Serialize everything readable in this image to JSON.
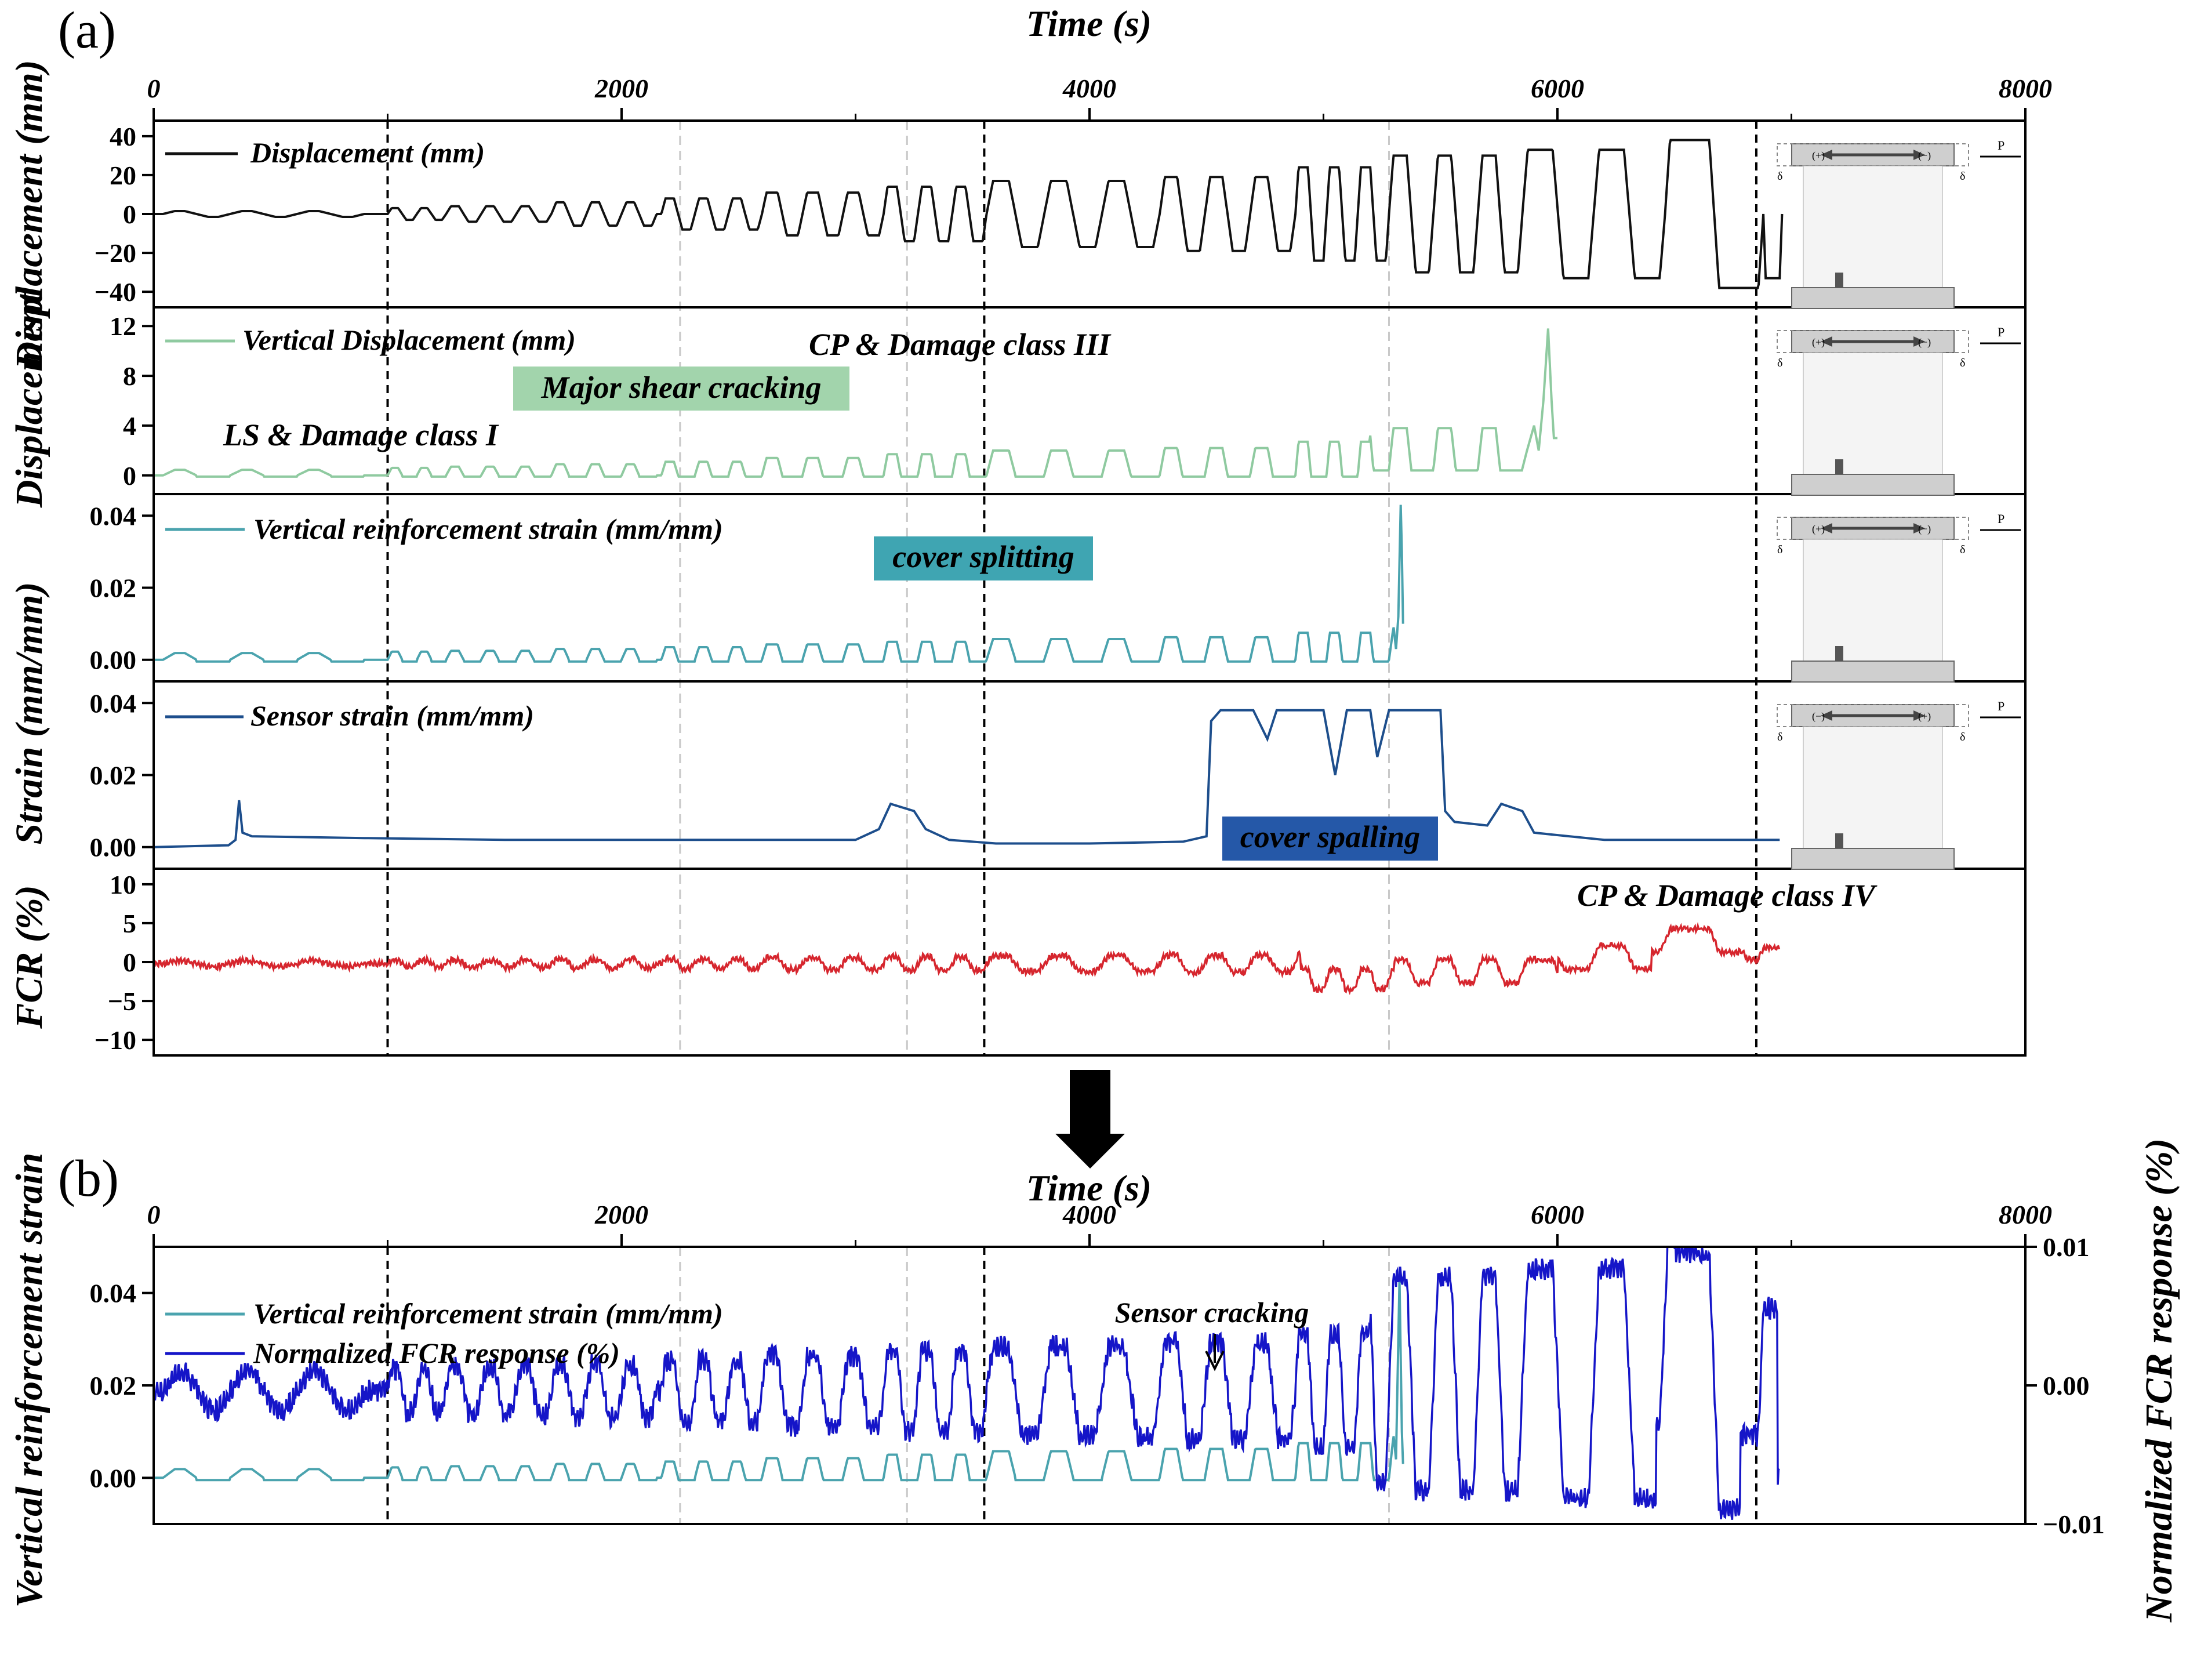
{
  "figure": {
    "panel_a_label": "(a)",
    "panel_b_label": "(b)",
    "time_axis_label": "Time (s)"
  },
  "colors": {
    "displacement": "#111111",
    "vertical_displacement": "#8fcaa0",
    "vertical_reinforcement_strain": "#4aa3ae",
    "sensor_strain": "#1d4e8c",
    "fcr": "#d6262e",
    "normalized_fcr": "#1515c8",
    "major_shear_box": "#a2d4ac",
    "cover_splitting_box": "#3fa5b2",
    "cover_spalling_box": "#2558a8"
  },
  "annotations": {
    "cp_damage_iii": "CP & Damage class III",
    "major_shear_cracking": "Major shear cracking",
    "ls_damage_i": "LS & Damage class I",
    "cover_splitting": "cover splitting",
    "cover_spalling": "cover spalling",
    "cp_damage_iv": "CP & Damage class IV",
    "sensor_cracking": "Sensor cracking"
  },
  "schematic": {
    "load_label": "P",
    "delta_label": "δ",
    "plus_sign": "(+)",
    "minus_sign": "(−)"
  },
  "chart_data": [
    {
      "type": "line",
      "panel": "a-1",
      "ylabel": "Displacement (mm)",
      "xlim": [
        0,
        8000
      ],
      "ylim": [
        -48,
        48
      ],
      "yticks": [
        40,
        20,
        0,
        -20,
        -40
      ],
      "ytick_labels": [
        "40",
        "20",
        "0",
        "−20",
        "−40"
      ],
      "xticks": [
        0,
        2000,
        4000,
        6000,
        8000
      ],
      "legend": "Displacement (mm)",
      "vlines_dark": [
        1000,
        3550,
        6850
      ],
      "vlines_light": [
        2250,
        3220,
        5280
      ],
      "cycle_blocks": [
        {
          "t0": 40,
          "t1": 900,
          "amp": 1.5,
          "n": 3,
          "hold": 0.3
        },
        {
          "t0": 1000,
          "t1": 1250,
          "amp": 3,
          "n": 2,
          "hold": 0.45
        },
        {
          "t0": 1250,
          "t1": 1700,
          "amp": 4,
          "n": 3,
          "hold": 0.45
        },
        {
          "t0": 1700,
          "t1": 2150,
          "amp": 6,
          "n": 3,
          "hold": 0.45
        },
        {
          "t0": 2170,
          "t1": 2600,
          "amp": 8,
          "n": 3,
          "hold": 0.5
        },
        {
          "t0": 2600,
          "t1": 3120,
          "amp": 11,
          "n": 3,
          "hold": 0.55
        },
        {
          "t0": 3120,
          "t1": 3560,
          "amp": 14,
          "n": 3,
          "hold": 0.55
        },
        {
          "t0": 3560,
          "t1": 4300,
          "amp": 17,
          "n": 3,
          "hold": 0.55
        },
        {
          "t0": 4300,
          "t1": 4880,
          "amp": 19,
          "n": 3,
          "hold": 0.55
        },
        {
          "t0": 4880,
          "t1": 5280,
          "amp": 24,
          "n": 3,
          "hold": 0.6
        },
        {
          "t0": 5280,
          "t1": 5850,
          "amp": 30,
          "n": 3,
          "hold": 0.6
        },
        {
          "t0": 5850,
          "t1": 6460,
          "amp": 33,
          "n": 2,
          "hold": 0.7
        },
        {
          "t0": 6460,
          "t1": 6880,
          "amp": 38,
          "n": 1,
          "hold": 0.8
        }
      ]
    },
    {
      "type": "line",
      "panel": "a-2",
      "ylabel": "Displacement",
      "xlim": [
        0,
        8000
      ],
      "ylim": [
        -1.5,
        13.5
      ],
      "yticks": [
        12,
        8,
        4,
        0
      ],
      "ytick_labels": [
        "12",
        "8",
        "4",
        "0"
      ],
      "legend": "Vertical Displacement (mm)",
      "end_time": 6000,
      "peak_time": 5960,
      "peak_value": 11.8
    },
    {
      "type": "line",
      "panel": "a-3",
      "ylabel": "Strain (mm/mm)",
      "xlim": [
        0,
        8000
      ],
      "ylim": [
        -0.006,
        0.046
      ],
      "yticks": [
        0.04,
        0.02,
        0.0
      ],
      "ytick_labels": [
        "0.04",
        "0.02",
        "0.00"
      ],
      "legend": "Vertical reinforcement strain (mm/mm)",
      "end_time": 5340,
      "max_value": 0.043
    },
    {
      "type": "line",
      "panel": "a-4",
      "ylabel": "Strain (mm/mm)",
      "xlim": [
        0,
        8000
      ],
      "ylim": [
        -0.006,
        0.046
      ],
      "yticks": [
        0.04,
        0.02,
        0.0
      ],
      "ytick_labels": [
        "0.04",
        "0.02",
        "0.00"
      ],
      "legend": "Sensor strain (mm/mm)",
      "points": [
        [
          0,
          0.0
        ],
        [
          320,
          0.0005
        ],
        [
          350,
          0.002
        ],
        [
          365,
          0.013
        ],
        [
          380,
          0.004
        ],
        [
          420,
          0.003
        ],
        [
          900,
          0.0025
        ],
        [
          1500,
          0.002
        ],
        [
          2500,
          0.002
        ],
        [
          3000,
          0.002
        ],
        [
          3100,
          0.005
        ],
        [
          3150,
          0.012
        ],
        [
          3250,
          0.01
        ],
        [
          3300,
          0.005
        ],
        [
          3400,
          0.002
        ],
        [
          3600,
          0.001
        ],
        [
          4000,
          0.001
        ],
        [
          4400,
          0.0015
        ],
        [
          4500,
          0.003
        ],
        [
          4520,
          0.035
        ],
        [
          4560,
          0.038
        ],
        [
          4700,
          0.038
        ],
        [
          4760,
          0.03
        ],
        [
          4800,
          0.038
        ],
        [
          5000,
          0.038
        ],
        [
          5050,
          0.02
        ],
        [
          5100,
          0.038
        ],
        [
          5200,
          0.038
        ],
        [
          5230,
          0.025
        ],
        [
          5280,
          0.038
        ],
        [
          5500,
          0.038
        ],
        [
          5520,
          0.01
        ],
        [
          5560,
          0.007
        ],
        [
          5700,
          0.006
        ],
        [
          5760,
          0.012
        ],
        [
          5850,
          0.01
        ],
        [
          5900,
          0.004
        ],
        [
          6200,
          0.002
        ],
        [
          6950,
          0.002
        ]
      ]
    },
    {
      "type": "line",
      "panel": "a-5",
      "ylabel": "FCR (%)",
      "xlim": [
        0,
        8000
      ],
      "ylim": [
        -12,
        12
      ],
      "yticks": [
        10,
        5,
        0,
        -5,
        -10
      ],
      "ytick_labels": [
        "10",
        "5",
        "0",
        "−5",
        "−10"
      ],
      "end_time": 6950
    },
    {
      "type": "line",
      "panel": "b",
      "ylabel": "Vertical reinforcement strain",
      "ylabel_right": "Normalized FCR response (%)",
      "xlim": [
        0,
        8000
      ],
      "ylim": [
        -0.01,
        0.05
      ],
      "yticks": [
        0.04,
        0.02,
        0.0
      ],
      "ytick_labels": [
        "0.04",
        "0.02",
        "0.00"
      ],
      "ylim_right": [
        -0.01,
        0.01
      ],
      "yticks_right": [
        0.01,
        0.0,
        -0.01
      ],
      "ytick_labels_right": [
        "0.01",
        "0.00",
        "−0.01"
      ],
      "series": [
        {
          "name": "Vertical reinforcement strain (mm/mm)"
        },
        {
          "name": "Normalized FCR response (%)"
        }
      ],
      "sensor_cracking_time": 4550
    }
  ]
}
